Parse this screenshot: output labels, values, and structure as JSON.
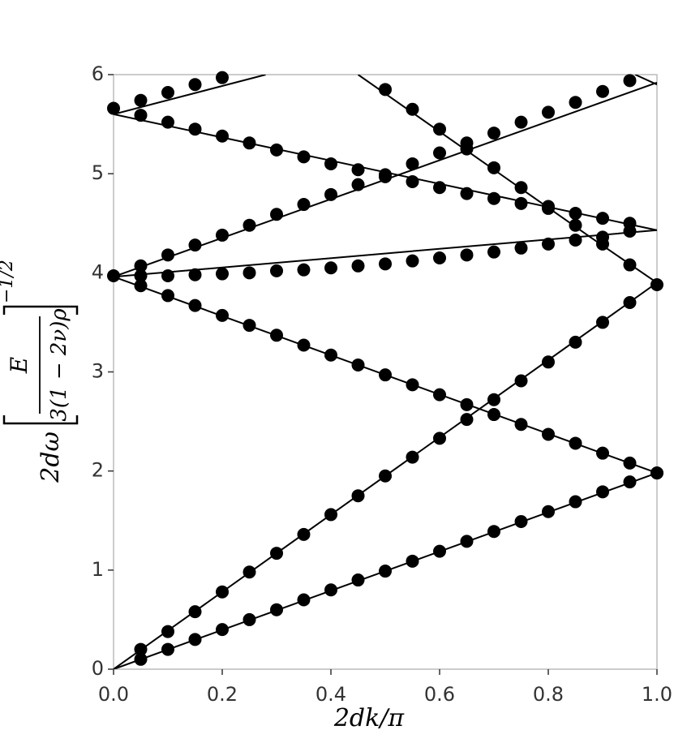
{
  "chart_data": {
    "type": "line",
    "x_label": "2dk/π",
    "y_label": {
      "prefix": "2dω",
      "numerator": "E",
      "denominator": "3(1 − 2ν)ρ",
      "exponent": "−1/2"
    },
    "xlim": [
      0,
      1
    ],
    "ylim": [
      0,
      6
    ],
    "xticks": [
      {
        "value": 0,
        "label": "0.0"
      },
      0.2,
      0.4,
      0.6,
      0.8,
      {
        "value": 1,
        "label": "1.0"
      }
    ],
    "yticks": [
      0,
      1,
      2,
      3,
      4,
      5,
      6
    ],
    "color": "#000000",
    "series": [
      {
        "mode": "line",
        "x": [
          0,
          1
        ],
        "values": [
          0,
          3.9
        ]
      },
      {
        "mode": "line",
        "x": [
          0,
          1
        ],
        "values": [
          0,
          1.98
        ]
      },
      {
        "mode": "line",
        "x": [
          0,
          1
        ],
        "values": [
          3.96,
          1.98
        ]
      },
      {
        "mode": "line",
        "x": [
          0,
          1
        ],
        "values": [
          3.96,
          4.43
        ]
      },
      {
        "mode": "line",
        "x": [
          0,
          1
        ],
        "values": [
          3.96,
          5.92
        ]
      },
      {
        "mode": "line",
        "x": [
          0,
          1
        ],
        "values": [
          5.6,
          4.43
        ]
      },
      {
        "mode": "line",
        "x": [
          0,
          0.28
        ],
        "values": [
          5.6,
          6.0
        ]
      },
      {
        "mode": "line",
        "x": [
          0.45,
          0.88,
          1.0
        ],
        "values": [
          6.0,
          4.35,
          3.9
        ]
      },
      {
        "mode": "line",
        "x": [
          0.96,
          1.0
        ],
        "values": [
          6.0,
          5.9
        ]
      },
      {
        "mode": "markers",
        "x": [
          0.05,
          0.1,
          0.15,
          0.2,
          0.25,
          0.3,
          0.35,
          0.4,
          0.45,
          0.5,
          0.55,
          0.6,
          0.65,
          0.7,
          0.75,
          0.8,
          0.85,
          0.9,
          0.95,
          1.0
        ],
        "values": [
          0.2,
          0.38,
          0.58,
          0.78,
          0.98,
          1.17,
          1.36,
          1.56,
          1.75,
          1.95,
          2.14,
          2.33,
          2.52,
          2.72,
          2.91,
          3.1,
          3.3,
          3.5,
          3.7,
          3.88
        ]
      },
      {
        "mode": "markers",
        "x": [
          0.05,
          0.1,
          0.15,
          0.2,
          0.25,
          0.3,
          0.35,
          0.4,
          0.45,
          0.5,
          0.55,
          0.6,
          0.65,
          0.7,
          0.75,
          0.8,
          0.85,
          0.9,
          0.95,
          1.0
        ],
        "values": [
          0.1,
          0.2,
          0.3,
          0.4,
          0.5,
          0.6,
          0.7,
          0.8,
          0.9,
          0.99,
          1.09,
          1.19,
          1.29,
          1.39,
          1.49,
          1.59,
          1.69,
          1.79,
          1.89,
          1.98
        ]
      },
      {
        "mode": "markers",
        "x": [
          0,
          0.05,
          0.1,
          0.15,
          0.2,
          0.25,
          0.3,
          0.35,
          0.4,
          0.45,
          0.5,
          0.55,
          0.6,
          0.65,
          0.7,
          0.75,
          0.8,
          0.85,
          0.9,
          0.95,
          1.0
        ],
        "values": [
          3.97,
          3.87,
          3.77,
          3.67,
          3.57,
          3.47,
          3.37,
          3.27,
          3.17,
          3.07,
          2.97,
          2.87,
          2.77,
          2.67,
          2.57,
          2.47,
          2.37,
          2.28,
          2.18,
          2.08,
          1.98
        ]
      },
      {
        "mode": "markers",
        "x": [
          0.05,
          0.1,
          0.15,
          0.2,
          0.25,
          0.3,
          0.35,
          0.4,
          0.45,
          0.5,
          0.55,
          0.6,
          0.65,
          0.7,
          0.75,
          0.8,
          0.85,
          0.9,
          0.95
        ],
        "values": [
          3.97,
          3.97,
          3.98,
          3.99,
          4.0,
          4.02,
          4.03,
          4.05,
          4.07,
          4.09,
          4.12,
          4.15,
          4.18,
          4.21,
          4.25,
          4.29,
          4.33,
          4.29,
          4.42
        ]
      },
      {
        "mode": "markers",
        "x": [
          0.05,
          0.1,
          0.15,
          0.2,
          0.25,
          0.3,
          0.35,
          0.4,
          0.45,
          0.5,
          0.55,
          0.6,
          0.65,
          0.7,
          0.75,
          0.8,
          0.85,
          0.9,
          0.95
        ],
        "values": [
          4.07,
          4.18,
          4.28,
          4.38,
          4.48,
          4.59,
          4.69,
          4.79,
          4.89,
          4.99,
          5.1,
          5.21,
          5.31,
          5.41,
          5.52,
          5.62,
          5.72,
          5.83,
          5.94
        ]
      },
      {
        "mode": "markers",
        "x": [
          0,
          0.05,
          0.1,
          0.15,
          0.2,
          0.25,
          0.3,
          0.35,
          0.4,
          0.45,
          0.5,
          0.55,
          0.6,
          0.65,
          0.7,
          0.75,
          0.8,
          0.85,
          0.9,
          0.95
        ],
        "values": [
          5.66,
          5.59,
          5.52,
          5.45,
          5.38,
          5.31,
          5.24,
          5.17,
          5.1,
          5.04,
          4.97,
          4.92,
          4.86,
          4.8,
          4.75,
          4.7,
          4.65,
          4.6,
          4.55,
          4.5
        ]
      },
      {
        "mode": "markers",
        "x": [
          0.05,
          0.1,
          0.15,
          0.2
        ],
        "values": [
          5.74,
          5.82,
          5.9,
          5.97
        ]
      },
      {
        "mode": "markers",
        "x": [
          0.5,
          0.55,
          0.6,
          0.65,
          0.7,
          0.75,
          0.8,
          0.85,
          0.9,
          0.95
        ],
        "values": [
          5.85,
          5.65,
          5.45,
          5.25,
          5.06,
          4.86,
          4.67,
          4.48,
          4.36,
          4.08
        ]
      }
    ]
  }
}
